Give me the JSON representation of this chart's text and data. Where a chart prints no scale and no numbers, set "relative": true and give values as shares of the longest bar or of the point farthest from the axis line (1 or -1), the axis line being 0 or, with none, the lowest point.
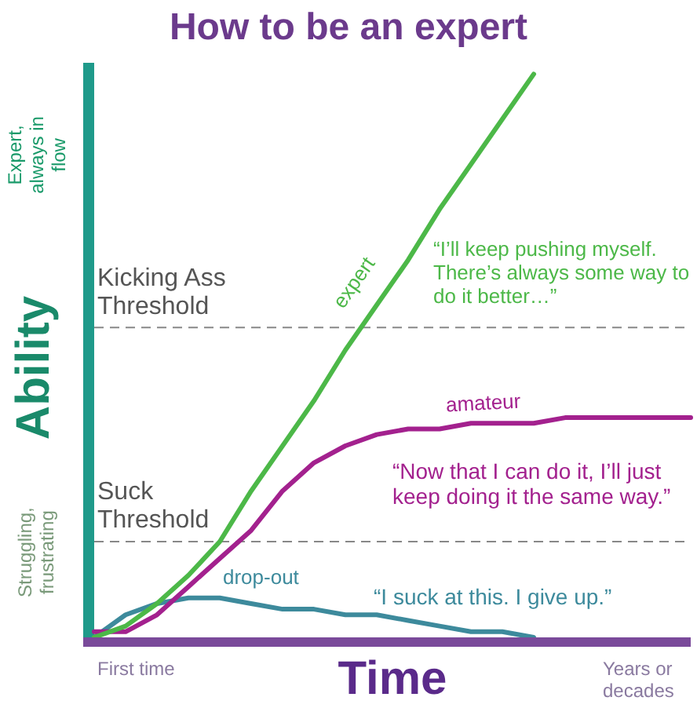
{
  "chart_data": {
    "type": "line",
    "title": "How to be an expert",
    "xlabel": "Time",
    "ylabel": "Ability",
    "relative": true,
    "grid": false,
    "legend": false,
    "marker": "none",
    "categories": [
      null,
      null,
      null,
      null,
      null,
      null,
      null,
      null,
      null,
      null,
      null,
      null,
      null,
      null,
      null,
      null,
      null,
      null,
      null,
      null
    ],
    "series": [
      {
        "name": "expert",
        "color": "#4cb848",
        "values": [
          0,
          0.02,
          0.06,
          0.11,
          0.17,
          0.26,
          0.34,
          0.42,
          0.51,
          0.59,
          0.67,
          0.76,
          0.84,
          0.92,
          1,
          null,
          null,
          null,
          null,
          null
        ]
      },
      {
        "name": "amateur",
        "color": "#a3218e",
        "values": [
          0.01,
          0.01,
          0.04,
          0.09,
          0.14,
          0.19,
          0.26,
          0.31,
          0.34,
          0.36,
          0.37,
          0.37,
          0.38,
          0.38,
          0.38,
          0.39,
          0.39,
          0.39,
          0.39,
          0.39
        ]
      },
      {
        "name": "drop-out",
        "color": "#3d8a9c",
        "values": [
          0,
          0.04,
          0.06,
          0.07,
          0.07,
          0.06,
          0.05,
          0.05,
          0.04,
          0.04,
          0.03,
          0.02,
          0.01,
          0.01,
          0,
          null,
          null,
          null,
          null,
          null
        ]
      }
    ],
    "ref_lines": [
      {
        "axis": "y",
        "value": 0.55,
        "label": "Kicking Ass Threshold",
        "color": "#888888",
        "line_style": "dashed"
      },
      {
        "axis": "y",
        "value": 0.17,
        "label": "Suck Threshold",
        "color": "#888888",
        "line_style": "dashed"
      }
    ],
    "annotations": [
      "“I’ll keep pushing myself. There’s always some way to do it better…”",
      "“Now that I can do it, I’ll just keep doing it the same way.”",
      "“I suck at this. I give up.”",
      "Expert, always in flow",
      "Struggling, frustrating",
      "First time",
      "Years or decades"
    ]
  }
}
